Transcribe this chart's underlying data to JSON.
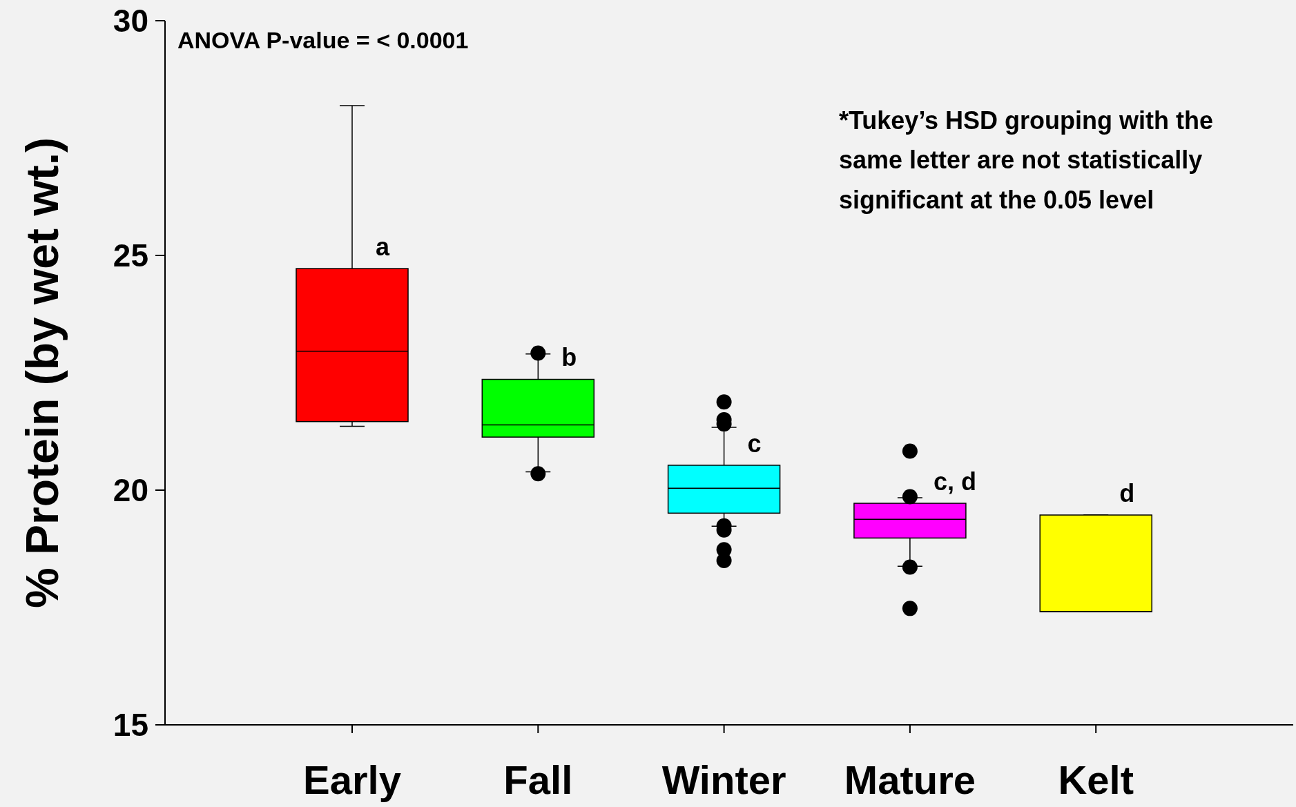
{
  "chart_data": {
    "type": "box",
    "ylabel": "% Protein (by wet wt.)",
    "categories": [
      "Early",
      "Fall",
      "Winter",
      "Mature",
      "Kelt"
    ],
    "colors": [
      "#ff0000",
      "#00ff00",
      "#00ffff",
      "#ff00ff",
      "#ffff00"
    ],
    "boxes": [
      {
        "low": 21.36,
        "q1": 21.46,
        "median": 22.96,
        "q3": 24.72,
        "high": 28.19
      },
      {
        "low": 20.39,
        "q1": 21.13,
        "median": 21.39,
        "q3": 22.36,
        "high": 22.9,
        "outliers": [
          22.92,
          20.35
        ]
      },
      {
        "low": 19.23,
        "q1": 19.51,
        "median": 20.04,
        "q3": 20.53,
        "high": 21.34,
        "outliers": [
          21.88,
          21.5,
          21.41,
          19.24,
          19.15,
          18.73,
          18.5
        ]
      },
      {
        "low": 18.38,
        "q1": 18.98,
        "median": 19.38,
        "q3": 19.72,
        "high": 19.84,
        "outliers": [
          20.83,
          19.86,
          18.36,
          17.48
        ]
      },
      {
        "low": 17.41,
        "q1": 17.41,
        "median": 17.41,
        "q3": 19.47,
        "high": 19.47
      }
    ],
    "ylim": [
      15,
      30
    ],
    "yticks": [
      15,
      20,
      25,
      30
    ],
    "grid": false,
    "annotations": [
      "ANOVA P-value = < 0.0001",
      "a",
      "b",
      "c",
      "c, d",
      "d",
      "*Tukey’s HSD grouping with the same letter are not statistically significant at the 0.05 level"
    ]
  }
}
